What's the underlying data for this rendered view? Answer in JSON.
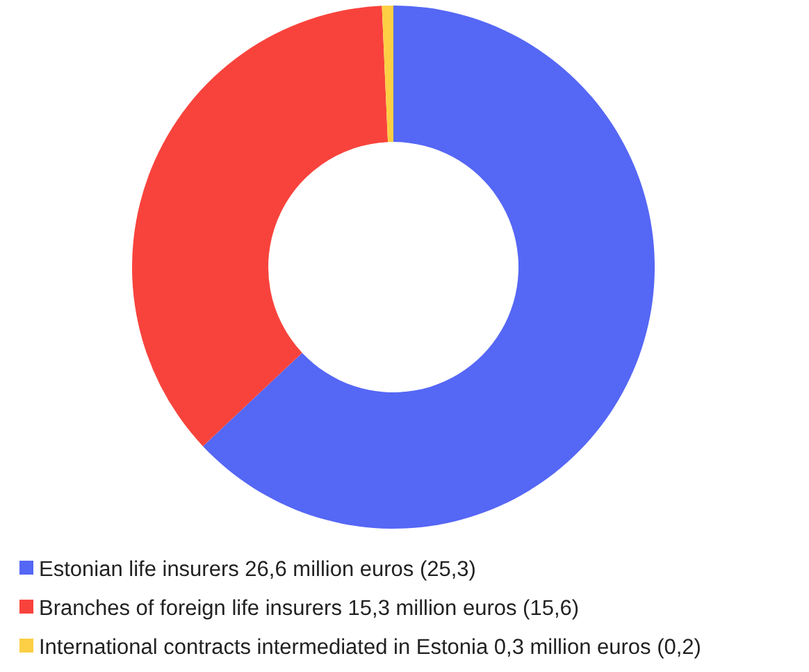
{
  "chart_data": {
    "type": "donut",
    "categories": [
      "Estonian life insurers 26,6 million euros (25,3)",
      "Branches of foreign life insurers 15,3 million euros (15,6)",
      "International contracts intermediated in Estonia 0,3 million euros (0,2)"
    ],
    "values": [
      63.0,
      36.3,
      0.7
    ],
    "colors": [
      "#5567f5",
      "#f8433c",
      "#fccf44"
    ],
    "legend": "bottom left"
  }
}
